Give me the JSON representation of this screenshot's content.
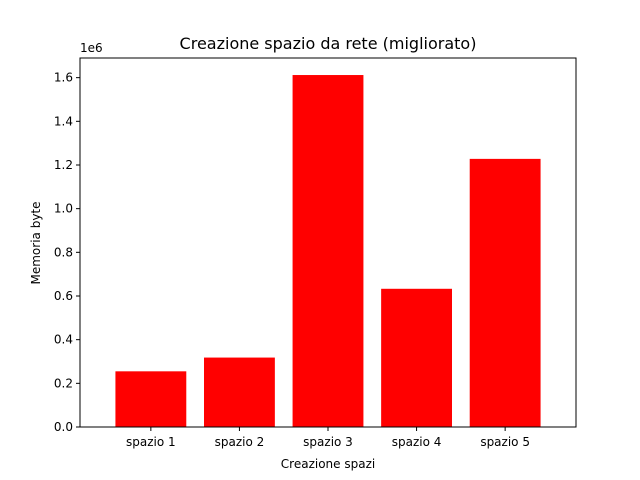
{
  "chart_data": {
    "type": "bar",
    "title": "Creazione spazio da rete (migliorato)",
    "xlabel": "Creazione spazi",
    "ylabel": "Memoria byte",
    "y_offset_text": "1e6",
    "categories": [
      "spazio 1",
      "spazio 2",
      "spazio 3",
      "spazio 4",
      "spazio 5"
    ],
    "values": [
      255000,
      318000,
      1612000,
      633000,
      1228000
    ],
    "ylim": [
      0,
      1690000
    ],
    "yticks": [
      {
        "value": 0,
        "label": "0.0"
      },
      {
        "value": 200000,
        "label": "0.2"
      },
      {
        "value": 400000,
        "label": "0.4"
      },
      {
        "value": 600000,
        "label": "0.6"
      },
      {
        "value": 800000,
        "label": "0.8"
      },
      {
        "value": 1000000,
        "label": "1.0"
      },
      {
        "value": 1200000,
        "label": "1.2"
      },
      {
        "value": 1400000,
        "label": "1.4"
      },
      {
        "value": 1600000,
        "label": "1.6"
      }
    ],
    "bar_color": "#ff0000",
    "grid": false,
    "legend": "none"
  }
}
